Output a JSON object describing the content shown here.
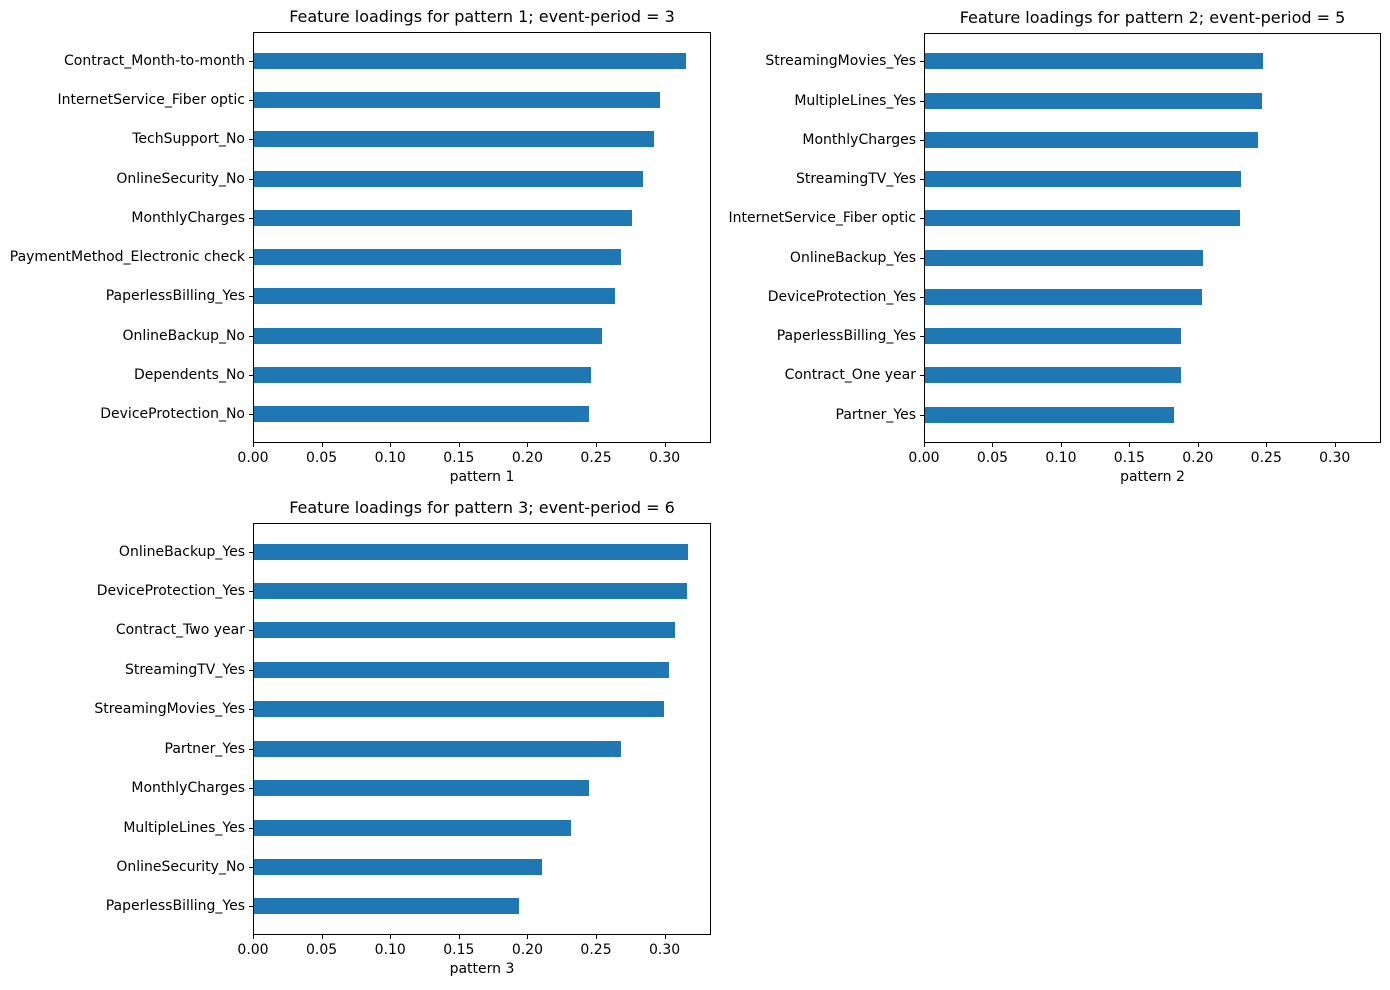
{
  "figure": {
    "background": "#ffffff",
    "bar_color": "#1f77b4",
    "text_color": "#000000",
    "grid": false,
    "legend": null
  },
  "chart_data": [
    {
      "type": "bar",
      "orientation": "horizontal",
      "title": "Feature loadings for pattern 1; event-period = 3",
      "xlabel": "pattern 1",
      "ylabel": "",
      "xlim": [
        0,
        0.3338
      ],
      "xtick_labels": [
        "0.00",
        "0.05",
        "0.10",
        "0.15",
        "0.20",
        "0.25",
        "0.30"
      ],
      "categories": [
        "Contract_Month-to-month",
        "InternetService_Fiber optic",
        "TechSupport_No",
        "OnlineSecurity_No",
        "MonthlyCharges",
        "PaymentMethod_Electronic check",
        "PaperlessBilling_Yes",
        "OnlineBackup_No",
        "Dependents_No",
        "DeviceProtection_No"
      ],
      "values": [
        0.316,
        0.297,
        0.293,
        0.285,
        0.277,
        0.269,
        0.264,
        0.255,
        0.247,
        0.245
      ]
    },
    {
      "type": "bar",
      "orientation": "horizontal",
      "title": "Feature loadings for pattern 2; event-period = 5",
      "xlabel": "pattern 2",
      "ylabel": "",
      "xlim": [
        0,
        0.3338
      ],
      "xtick_labels": [
        "0.00",
        "0.05",
        "0.10",
        "0.15",
        "0.20",
        "0.25",
        "0.30"
      ],
      "categories": [
        "StreamingMovies_Yes",
        "MultipleLines_Yes",
        "MonthlyCharges",
        "StreamingTV_Yes",
        "InternetService_Fiber optic",
        "OnlineBackup_Yes",
        "DeviceProtection_Yes",
        "PaperlessBilling_Yes",
        "Contract_One year",
        "Partner_Yes"
      ],
      "values": [
        0.248,
        0.247,
        0.244,
        0.232,
        0.231,
        0.204,
        0.203,
        0.188,
        0.188,
        0.183
      ]
    },
    {
      "type": "bar",
      "orientation": "horizontal",
      "title": "Feature loadings for pattern 3; event-period = 6",
      "xlabel": "pattern 3",
      "ylabel": "",
      "xlim": [
        0,
        0.3338
      ],
      "xtick_labels": [
        "0.00",
        "0.05",
        "0.10",
        "0.15",
        "0.20",
        "0.25",
        "0.30"
      ],
      "categories": [
        "OnlineBackup_Yes",
        "DeviceProtection_Yes",
        "Contract_Two year",
        "StreamingTV_Yes",
        "StreamingMovies_Yes",
        "Partner_Yes",
        "MonthlyCharges",
        "MultipleLines_Yes",
        "OnlineSecurity_No",
        "PaperlessBilling_Yes"
      ],
      "values": [
        0.318,
        0.317,
        0.308,
        0.304,
        0.3,
        0.269,
        0.245,
        0.232,
        0.211,
        0.194
      ]
    }
  ]
}
